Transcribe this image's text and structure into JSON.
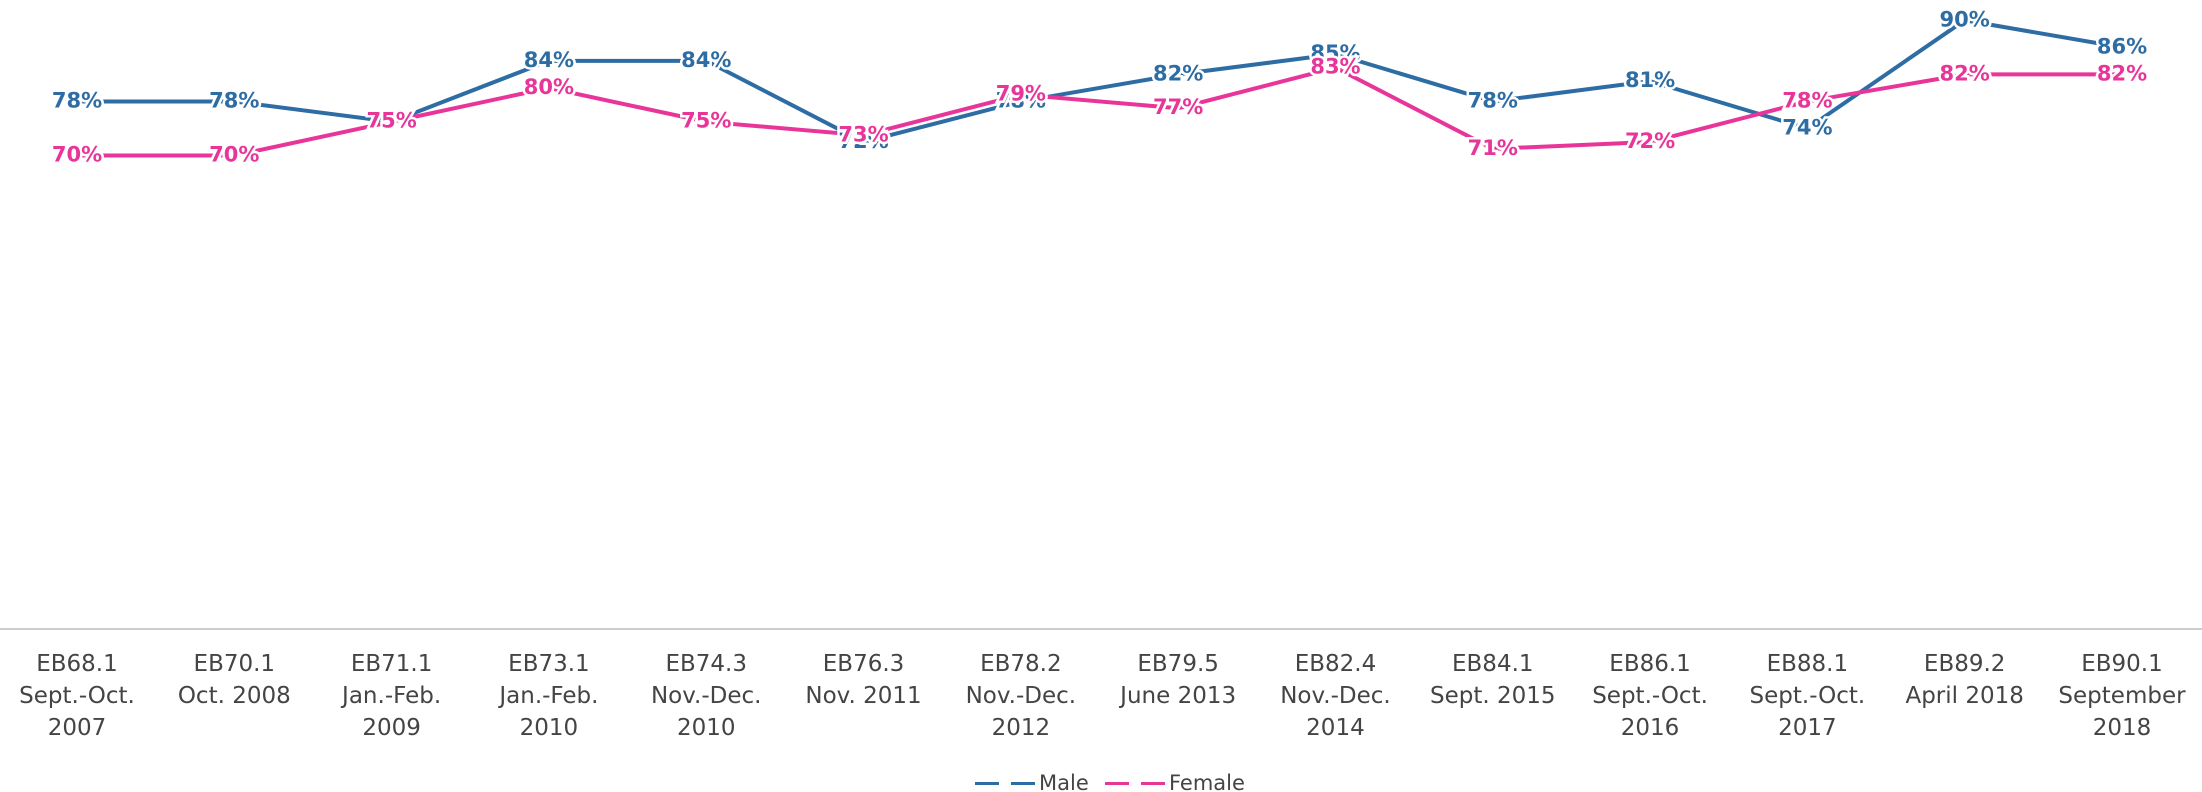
{
  "chart_data": {
    "type": "line",
    "categories": [
      "EB68.1\nSept.-Oct.\n2007",
      "EB70.1\nOct. 2008",
      "EB71.1\nJan.-Feb.\n2009",
      "EB73.1\nJan.-Feb.\n2010",
      "EB74.3\nNov.-Dec.\n2010",
      "EB76.3\nNov. 2011",
      "EB78.2\nNov.-Dec.\n2012",
      "EB79.5\nJune 2013",
      "EB82.4\nNov.-Dec.\n2014",
      "EB84.1\nSept. 2015",
      "EB86.1\nSept.-Oct.\n2016",
      "EB88.1\nSept.-Oct.\n2017",
      "EB89.2\nApril 2018",
      "EB90.1\nSeptember\n2018"
    ],
    "series": [
      {
        "name": "Male",
        "color": "#2e6da4",
        "values": [
          78,
          78,
          75,
          84,
          84,
          72,
          78,
          82,
          85,
          78,
          81,
          74,
          90,
          86
        ],
        "value_labels": [
          "78%",
          "78%",
          null,
          "84%",
          "84%",
          "72%",
          "78%",
          "82%",
          "85%",
          "78%",
          "81%",
          "74%",
          "90%",
          "86%"
        ]
      },
      {
        "name": "Female",
        "color": "#e8359a",
        "values": [
          70,
          70,
          75,
          80,
          75,
          73,
          79,
          77,
          83,
          71,
          72,
          78,
          82,
          82
        ],
        "value_labels": [
          "70%",
          "70%",
          "75%",
          "80%",
          "75%",
          "73%",
          "79%",
          "77%",
          "83%",
          "71%",
          "72%",
          "78%",
          "82%",
          "82%"
        ]
      }
    ],
    "ylim": [
      0,
      93
    ],
    "legend": "bottom"
  }
}
